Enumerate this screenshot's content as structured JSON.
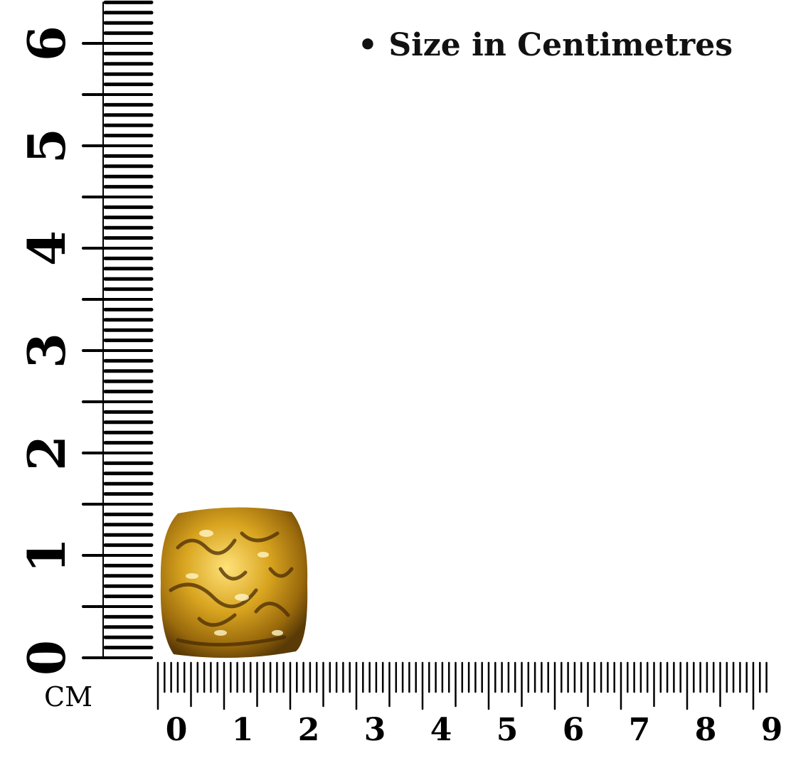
{
  "caption": "• Size in Centimetres",
  "unit_label": "CM",
  "vertical_ruler": {
    "labels": [
      "0",
      "1",
      "2",
      "3",
      "4",
      "5",
      "6"
    ],
    "max_cm": 6.4
  },
  "horizontal_ruler": {
    "labels": [
      "0",
      "1",
      "2",
      "3",
      "4",
      "5",
      "6",
      "7",
      "8",
      "9"
    ],
    "max_cm": 9.2
  },
  "product": {
    "name": "gold textured square bead",
    "colors": {
      "highlight": "#ffe27a",
      "mid": "#d9a520",
      "shadow": "#5a3a06"
    }
  }
}
